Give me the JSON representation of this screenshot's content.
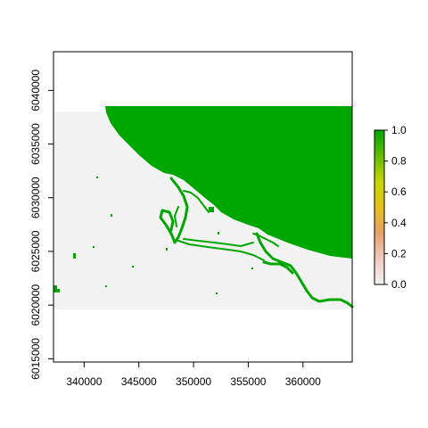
{
  "chart_data": {
    "type": "heatmap",
    "title": "",
    "xlabel": "",
    "ylabel": "",
    "xlim": [
      337200,
      364500
    ],
    "ylim": [
      6014700,
      6043600
    ],
    "raster_extent": {
      "xmin": 337200,
      "xmax": 364500,
      "ymin": 6019600,
      "ymax": 6038000
    },
    "x_ticks": [
      340000,
      345000,
      350000,
      355000,
      360000
    ],
    "x_tick_labels": [
      "340000",
      "345000",
      "350000",
      "355000",
      "360000"
    ],
    "y_ticks": [
      6015000,
      6020000,
      6025000,
      6030000,
      6035000,
      6040000
    ],
    "y_tick_labels": [
      "6015000",
      "6020000",
      "6025000",
      "6030000",
      "6035000",
      "6040000"
    ],
    "legend": {
      "position": "right",
      "range": [
        0.0,
        1.0
      ],
      "ticks": [
        0.0,
        0.2,
        0.4,
        0.6,
        0.8,
        1.0
      ],
      "tick_labels": [
        "0.0",
        "0.2",
        "0.4",
        "0.6",
        "0.8",
        "1.0"
      ],
      "colors": [
        "#f2f2f2",
        "#f0c9c0",
        "#e8a06a",
        "#e6c01a",
        "#c8d600",
        "#62bb00",
        "#00a600"
      ]
    },
    "colors": {
      "background_value": "#f2f2f2",
      "water_value": "#00a600"
    },
    "grid": false
  }
}
